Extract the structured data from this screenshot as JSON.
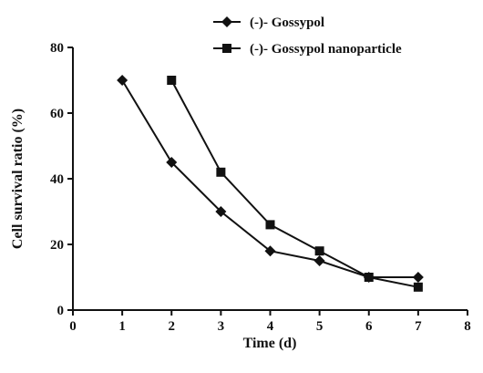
{
  "chart_data": {
    "type": "line",
    "xlabel": "Time (d)",
    "ylabel": "Cell survival ratio (%)",
    "xlim": [
      0,
      8
    ],
    "ylim": [
      0,
      80
    ],
    "xticks": [
      "0",
      "1",
      "2",
      "3",
      "4",
      "5",
      "6",
      "7",
      "8"
    ],
    "yticks": [
      "0",
      "20",
      "40",
      "60",
      "80"
    ],
    "grid": false,
    "legend_position": "top-right",
    "series": [
      {
        "name": "(-)- Gossypol",
        "marker": "diamond",
        "color": "#111111",
        "x": [
          1,
          2,
          3,
          4,
          5,
          6,
          7
        ],
        "y": [
          70,
          45,
          30,
          18,
          15,
          10,
          10
        ]
      },
      {
        "name": "(-)- Gossypol nanoparticle",
        "marker": "square",
        "color": "#111111",
        "x": [
          2,
          3,
          4,
          5,
          6,
          7
        ],
        "y": [
          70,
          42,
          26,
          18,
          10,
          7
        ]
      }
    ]
  }
}
